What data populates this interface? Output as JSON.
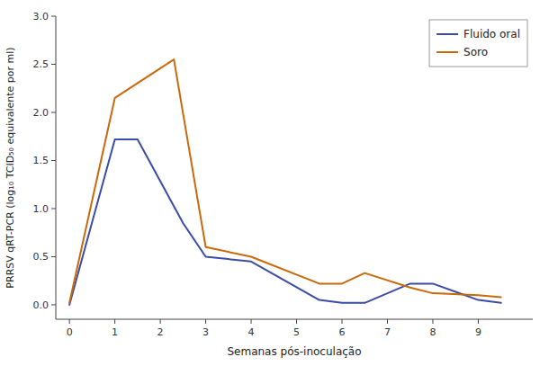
{
  "chart_data": {
    "type": "line",
    "xlabel": "Semanas pós-inoculação",
    "ylabel": "PRRSV qRT-PCR (log₁₀ TCID₅₀ equivalente por ml)",
    "series": [
      {
        "name": "Fluido oral",
        "color": "#3B4BA8",
        "x": [
          0,
          1,
          1.5,
          2.5,
          3,
          4,
          5.5,
          6,
          6.5,
          7.5,
          8,
          9,
          9.5
        ],
        "values": [
          0.0,
          1.72,
          1.72,
          0.85,
          0.5,
          0.45,
          0.05,
          0.02,
          0.02,
          0.22,
          0.22,
          0.05,
          0.02
        ]
      },
      {
        "name": "Soro",
        "color": "#C8690A",
        "x": [
          0,
          1,
          2.3,
          3,
          4,
          5.5,
          6,
          6.5,
          7.5,
          8,
          9,
          9.5
        ],
        "values": [
          0.02,
          2.15,
          2.55,
          0.6,
          0.5,
          0.22,
          0.22,
          0.33,
          0.18,
          0.12,
          0.1,
          0.08
        ]
      }
    ],
    "xlim": [
      -0.3,
      10.2
    ],
    "ylim": [
      -0.15,
      3.0
    ],
    "xticks": [
      0,
      1,
      2,
      3,
      4,
      5,
      6,
      7,
      8,
      9
    ],
    "yticks": [
      {
        "value": 0.0,
        "label": "0.0"
      },
      0.5,
      {
        "value": 1.0,
        "label": "1.0"
      },
      1.5,
      {
        "value": 2.0,
        "label": "2.0"
      },
      2.5,
      {
        "value": 3.0,
        "label": "3.0"
      }
    ],
    "grid": false,
    "legend": "upper right"
  }
}
